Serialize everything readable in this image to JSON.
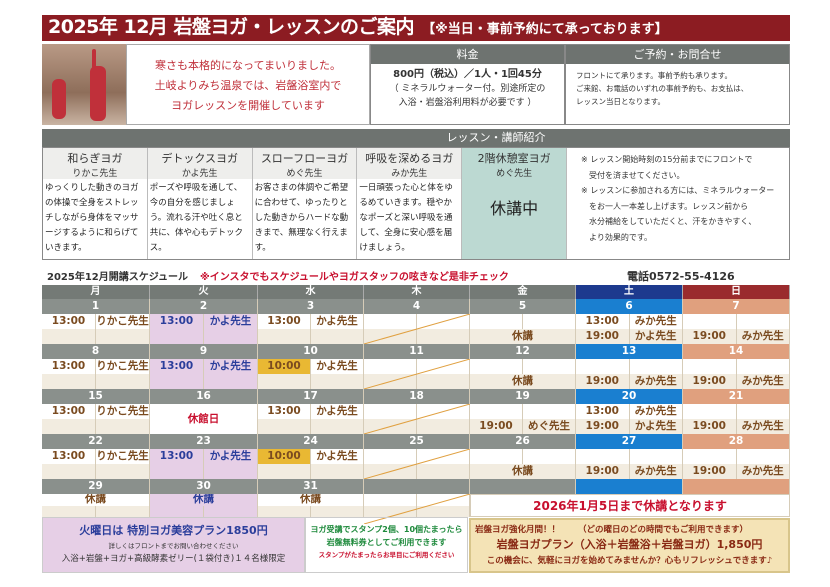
{
  "title": {
    "main": "2025年 12月  岩盤ヨガ・レッスンのご案内",
    "sub": "【※当日・事前予約にて承っております】"
  },
  "intro": [
    "寒さも本格的になってまいりました。",
    "土岐よりみち温泉では、岩盤浴室内で",
    "ヨガレッスンを開催しています"
  ],
  "fee": {
    "header": "料金",
    "price": "800円（税込）／1人・1回45分",
    "note1": "（ ミネラルウォーター付。別途所定の",
    "note2": "入浴・岩盤浴利用料が必要です ）"
  },
  "reservation": {
    "header": "ご予約・お問合せ",
    "lines": [
      "フロントにて承ります。事前予約も承ります。",
      "ご来館、お電話のいずれの事前予約も、お支払は、",
      "レッスン当日となります。"
    ]
  },
  "lessons": {
    "header": "レッスン・講師紹介",
    "items": [
      {
        "name": "和らぎヨガ",
        "teacher": "りかこ先生",
        "desc": "ゆっくりした動きのヨガの体操で全身をストレッチしながら身体をマッサージするように和らげていきます。"
      },
      {
        "name": "デトックスヨガ",
        "teacher": "かよ先生",
        "desc": "ポーズや呼吸を通して、今の自分を感じましょう。流れる汗や吐く息と共に、体や心もデトックス。"
      },
      {
        "name": "スローフローヨガ",
        "teacher": "めぐ先生",
        "desc": "お客さまの体調やご希望に合わせて、ゆったりとした動きからハードな動きまで、無理なく行えます。"
      },
      {
        "name": "呼吸を深めるヨガ",
        "teacher": "みか先生",
        "desc": "一日頑張った心と体をゆるめていきます。穏やかなポーズと深い呼吸を通して、全身に安心感を届けましょう。"
      },
      {
        "name": "2階休憩室ヨガ",
        "teacher": "めぐ先生",
        "desc": "休講中"
      }
    ],
    "notes": [
      "※ レッスン開始時刻の15分前までにフロントで",
      "　受付を済ませてください。",
      "※ レッスンに参加される方には、ミネラルウォーター",
      "　をお一人一本差し上げます。レッスン前から",
      "　水分補給をしていただくと、汗をかきやすく、",
      "　より効果的です。"
    ]
  },
  "schedule": {
    "title": "2025年12月開講スケジュール",
    "note": "※インスタでもスケジュールやヨガスタッフの呟きなど是非チェック",
    "phone": "電話0572-55-4126",
    "weekdays": [
      "月",
      "火",
      "水",
      "木",
      "金",
      "土",
      "日"
    ],
    "weeks": [
      [
        {
          "date": "1",
          "l1": [
            "13:00",
            "りかこ先生"
          ]
        },
        {
          "date": "2",
          "l1": [
            "13:00",
            "かよ先生"
          ]
        },
        {
          "date": "3",
          "l1": [
            "13:00",
            "かよ先生"
          ]
        },
        {
          "date": "4",
          "closed": true
        },
        {
          "date": "5",
          "l2note": "休講"
        },
        {
          "date": "6",
          "l1": [
            "13:00",
            "みか先生"
          ],
          "l2": [
            "19:00",
            "かよ先生"
          ]
        },
        {
          "date": "7",
          "l2": [
            "19:00",
            "みか先生"
          ]
        }
      ],
      [
        {
          "date": "8",
          "l1": [
            "13:00",
            "りかこ先生"
          ]
        },
        {
          "date": "9",
          "l1": [
            "13:00",
            "かよ先生"
          ]
        },
        {
          "date": "10",
          "l1": [
            "10:00",
            "かよ先生"
          ],
          "highlight": true
        },
        {
          "date": "11",
          "closed": true
        },
        {
          "date": "12",
          "l2note": "休講"
        },
        {
          "date": "13",
          "l2": [
            "19:00",
            "みか先生"
          ]
        },
        {
          "date": "14",
          "l2": [
            "19:00",
            "みか先生"
          ]
        }
      ],
      [
        {
          "date": "15",
          "l1": [
            "13:00",
            "りかこ先生"
          ]
        },
        {
          "date": "16",
          "fullnote": "休館日"
        },
        {
          "date": "17",
          "l1": [
            "13:00",
            "かよ先生"
          ]
        },
        {
          "date": "18",
          "closed": true
        },
        {
          "date": "19",
          "l2": [
            "19:00",
            "めぐ先生"
          ]
        },
        {
          "date": "20",
          "l1": [
            "13:00",
            "みか先生"
          ],
          "l2": [
            "19:00",
            "かよ先生"
          ]
        },
        {
          "date": "21",
          "l2": [
            "19:00",
            "みか先生"
          ]
        }
      ],
      [
        {
          "date": "22",
          "l1": [
            "13:00",
            "りかこ先生"
          ]
        },
        {
          "date": "23",
          "l1": [
            "13:00",
            "かよ先生"
          ]
        },
        {
          "date": "24",
          "l1": [
            "10:00",
            "かよ先生"
          ],
          "highlight": true
        },
        {
          "date": "25",
          "closed": true
        },
        {
          "date": "26",
          "l2note": "休講"
        },
        {
          "date": "27",
          "l2": [
            "19:00",
            "みか先生"
          ]
        },
        {
          "date": "28",
          "l2": [
            "19:00",
            "みか先生"
          ]
        }
      ],
      [
        {
          "date": "29",
          "l1note": "休講"
        },
        {
          "date": "30",
          "l1note": "休講"
        },
        {
          "date": "31",
          "l1note": "休講"
        },
        {
          "date": "",
          "closed": true
        },
        {
          "date": ""
        },
        {
          "date": ""
        },
        {
          "date": ""
        }
      ]
    ],
    "closure_notice": "2026年1月5日まで休講となります"
  },
  "tuesday_plan": {
    "title": "火曜日は 特別ヨガ美容プラン1850円",
    "detail": "詳しくはフロントまでお問い合わせください",
    "contents": "入浴+岩盤+ヨガ+高級酵素ゼリー(１袋付き)１４名様限定"
  },
  "stamp": {
    "line1": "ヨガ受講でスタンプ2個、10個たまったら",
    "line2": "岩盤無料券としてご利用できます",
    "line3": "スタンプがたまったらお早目にご利用ください"
  },
  "campaign": {
    "label": "岩盤ヨガ強化月間！！",
    "label_note": "（どの曜日のどの時間でもご利用できます）",
    "plan": "岩盤ヨガプラン（入浴＋岩盤浴＋岩盤ヨガ）1,850円",
    "tagline": "この機会に、気軽にヨガを始めてみませんか？心もリフレッシュできます♪"
  },
  "colors": {
    "title_bar": "#8c1c22",
    "saturday": "#1a7fd0",
    "sunday": "#e0a07e",
    "tuesday": "#e6cfe6",
    "highlight": "#e9b833",
    "alert": "#c8102e"
  }
}
